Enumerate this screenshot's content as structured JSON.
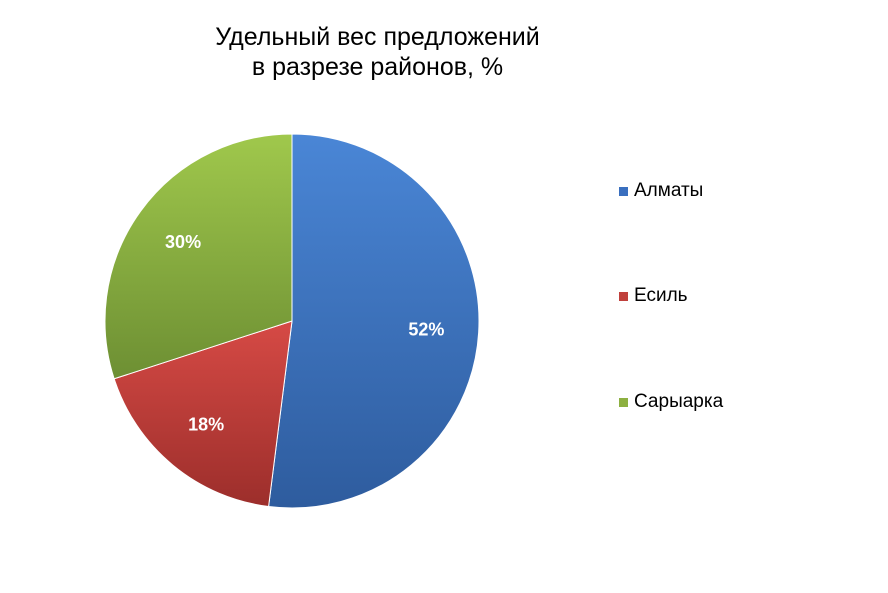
{
  "chart_data": {
    "type": "pie",
    "title_lines": [
      "Удельный вес предложений",
      "в разрезе районов, %"
    ],
    "categories": [
      "Алматы",
      "Есиль",
      "Сарыарка"
    ],
    "values": [
      52,
      18,
      30
    ],
    "data_labels": [
      "52%",
      "18%",
      "30%"
    ],
    "colors": [
      "#3a6fbf",
      "#c0403c",
      "#8db041"
    ],
    "legend_position": "right",
    "start_angle": "12 o'clock, clockwise"
  }
}
